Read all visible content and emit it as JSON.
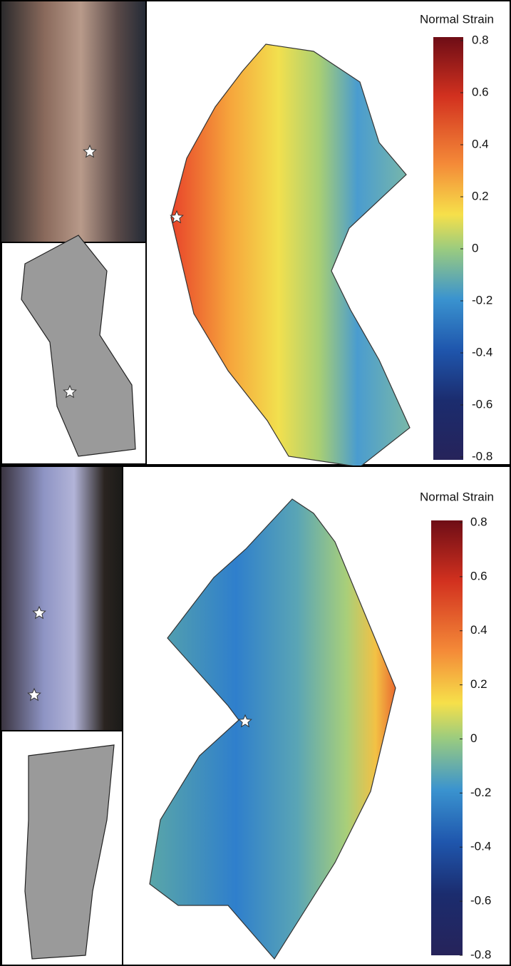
{
  "panels": [
    {
      "colorbar": {
        "title": "Normal Strain",
        "ticks": [
          0.8,
          0.6,
          0.4,
          0.2,
          0,
          -0.2,
          -0.4,
          -0.6,
          -0.8
        ]
      }
    },
    {
      "colorbar": {
        "title": "Normal Strain",
        "ticks": [
          0.8,
          0.6,
          0.4,
          0.2,
          0,
          -0.2,
          -0.4,
          -0.6,
          -0.8
        ]
      }
    }
  ]
}
